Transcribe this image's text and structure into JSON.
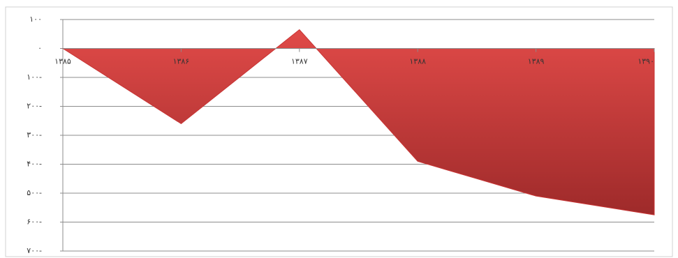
{
  "chart_data": {
    "type": "area",
    "categories": [
      "۱۳۸۵",
      "۱۳۸۶",
      "۱۳۸۷",
      "۱۳۸۸",
      "۱۳۸۹",
      "۱۳۹۰"
    ],
    "values": [
      0,
      -260,
      65,
      -390,
      -510,
      -575
    ],
    "color": "#c83434",
    "ylim": [
      -700,
      100
    ],
    "yticks": [
      {
        "value": -700,
        "label": "۷۰۰-"
      },
      {
        "value": -600,
        "label": "۶۰۰-"
      },
      {
        "value": -500,
        "label": "۵۰۰-"
      },
      {
        "value": -400,
        "label": "۴۰۰-"
      },
      {
        "value": -300,
        "label": "۳۰۰-"
      },
      {
        "value": -200,
        "label": "۲۰۰-"
      },
      {
        "value": -100,
        "label": "۱۰۰-"
      },
      {
        "value": 0,
        "label": "۰"
      },
      {
        "value": 100,
        "label": "۱۰۰"
      }
    ],
    "grid": true
  }
}
